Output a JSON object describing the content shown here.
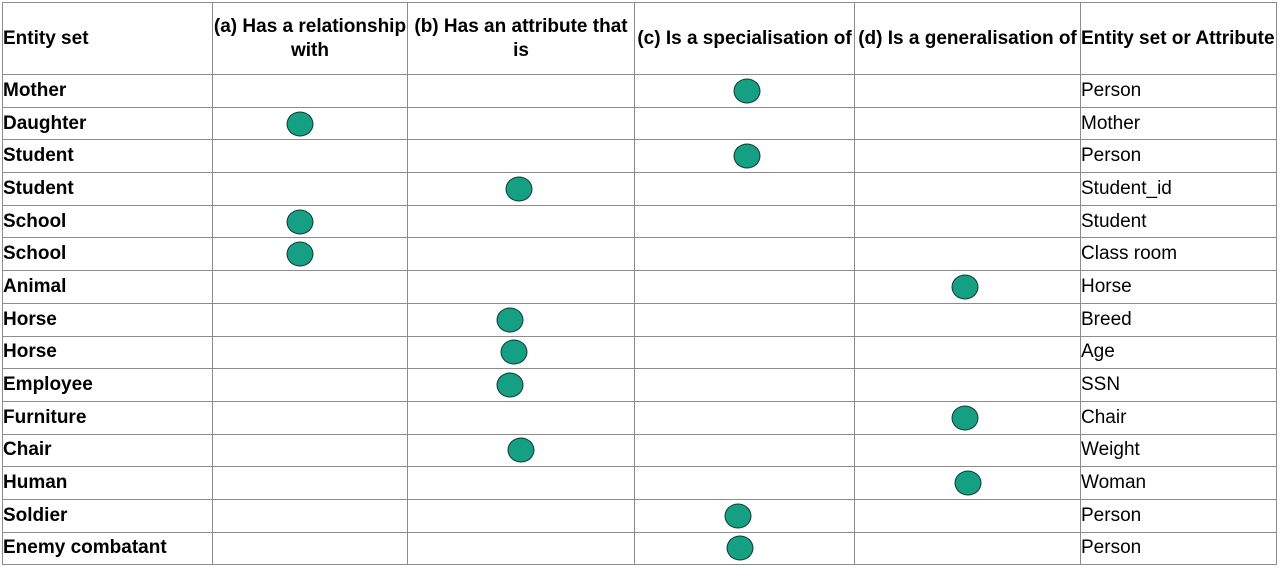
{
  "headers": {
    "entity": "Entity set",
    "a": "(a) Has a relationship with",
    "b": "(b) Has an attribute that is",
    "c": "(c) Is a specialisation of",
    "d": "(d) Is a generalisation of",
    "target": "Entity set or Attribute"
  },
  "mark_color": "#16a083",
  "rows": [
    {
      "entity": "Mother",
      "mark": "c",
      "target": "Person"
    },
    {
      "entity": "Daughter",
      "mark": "a",
      "target": "Mother"
    },
    {
      "entity": "Student",
      "mark": "c",
      "target": "Person"
    },
    {
      "entity": "Student",
      "mark": "b",
      "target": "Student_id"
    },
    {
      "entity": "School",
      "mark": "a",
      "target": "Student"
    },
    {
      "entity": "School",
      "mark": "a",
      "target": "Class room"
    },
    {
      "entity": "Animal",
      "mark": "d",
      "target": "Horse"
    },
    {
      "entity": "Horse",
      "mark": "b",
      "target": "Breed"
    },
    {
      "entity": "Horse",
      "mark": "b",
      "target": "Age"
    },
    {
      "entity": "Employee",
      "mark": "b",
      "target": "SSN"
    },
    {
      "entity": "Furniture",
      "mark": "d",
      "target": "Chair"
    },
    {
      "entity": "Chair",
      "mark": "b",
      "target": "Weight"
    },
    {
      "entity": "Human",
      "mark": "d",
      "target": "Woman"
    },
    {
      "entity": "Soldier",
      "mark": "c",
      "target": "Person"
    },
    {
      "entity": "Enemy combatant",
      "mark": "c",
      "target": "Person"
    }
  ]
}
